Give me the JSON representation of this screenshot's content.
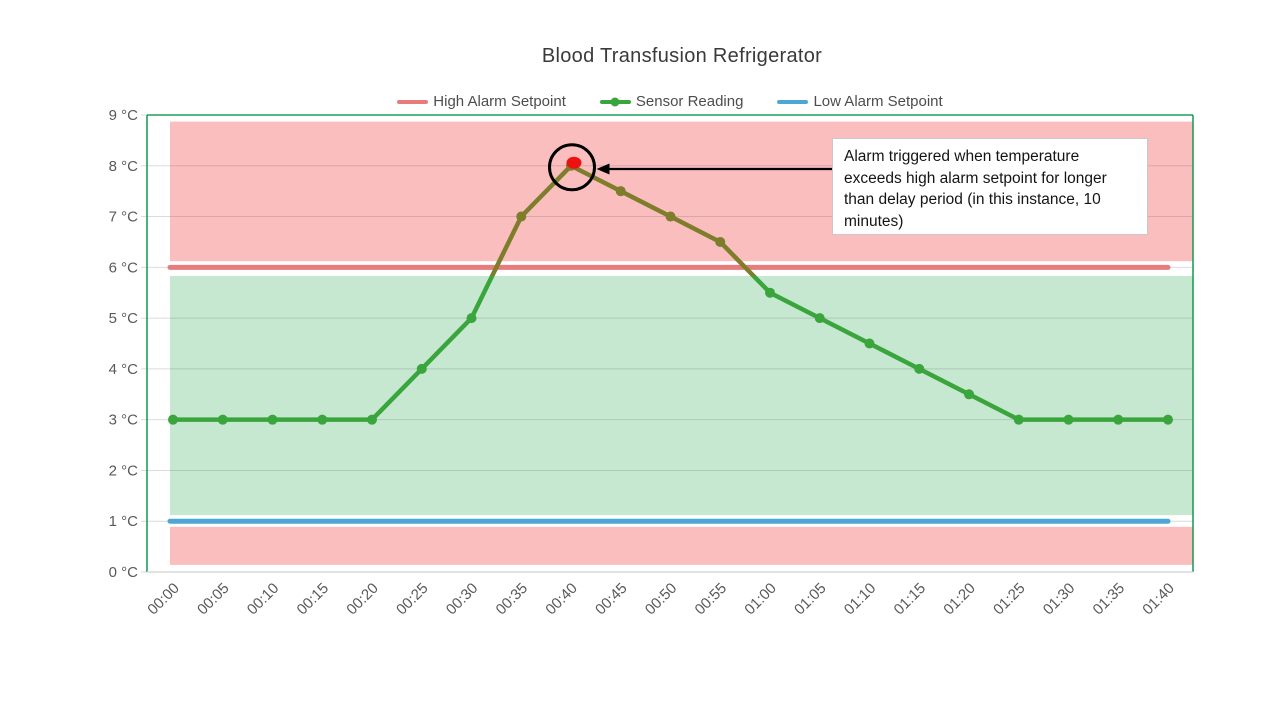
{
  "title": "Blood Transfusion Refrigerator",
  "legend": {
    "position": "top",
    "items": [
      {
        "label": "High Alarm Setpoint",
        "color": "#e87c7c",
        "marker": "line"
      },
      {
        "label": "Sensor Reading",
        "color": "#3aa53c",
        "marker": "line-dot"
      },
      {
        "label": "Low Alarm Setpoint",
        "color": "#4fa6d4",
        "marker": "line"
      }
    ]
  },
  "annotation": {
    "text": "Alarm triggered when temperature exceeds high alarm setpoint for longer than delay period (in this instance, 10 minutes)",
    "target_time": "00:40",
    "target_value": 8,
    "highlight_circle_color": "#000000",
    "highlight_dot_color": "#ee1111",
    "arrow_color": "#000000"
  },
  "chart_data": {
    "type": "line",
    "title": "Blood Transfusion Refrigerator",
    "x_labels": [
      "00:00",
      "00:05",
      "00:10",
      "00:15",
      "00:20",
      "00:25",
      "00:30",
      "00:35",
      "00:40",
      "00:45",
      "00:50",
      "00:55",
      "01:00",
      "01:05",
      "01:10",
      "01:15",
      "01:20",
      "01:25",
      "01:30",
      "01:35",
      "01:40"
    ],
    "y_axis": {
      "min": 0,
      "max": 9,
      "step": 1,
      "tick_labels": [
        "0 °C",
        "1 °C",
        "2 °C",
        "3 °C",
        "4 °C",
        "5 °C",
        "6 °C",
        "7 °C",
        "8 °C",
        "9 °C"
      ],
      "label_color": "#595959"
    },
    "series": [
      {
        "name": "High Alarm Setpoint",
        "type": "constant",
        "value": 6,
        "color": "#e87c7c"
      },
      {
        "name": "Sensor Reading",
        "type": "line-markers",
        "values": [
          3,
          3,
          3,
          3,
          3,
          4,
          5,
          7,
          8,
          7.5,
          7,
          6.5,
          5.5,
          5,
          4.5,
          4,
          3.5,
          3,
          3,
          3,
          3
        ],
        "color": "#3aa53c",
        "color_in_alarm_zone": "#7e7d2b"
      },
      {
        "name": "Low Alarm Setpoint",
        "type": "constant",
        "value": 1,
        "color": "#4fa6d4"
      }
    ],
    "bands": [
      {
        "name": "high-alarm-zone",
        "from": 6.12,
        "to": 8.87,
        "color": "#fbbebe"
      },
      {
        "name": "safe-zone",
        "from": 1.12,
        "to": 5.83,
        "color": "#c6e8d1"
      },
      {
        "name": "low-alarm-zone",
        "from": 0.14,
        "to": 0.89,
        "color": "#fbbebe"
      }
    ],
    "grid": {
      "horizontal": true,
      "vertical": false,
      "color": "rgba(90,90,90,0.22)"
    },
    "plot_border_color": "#1e9e5b",
    "bottom_axis_color": "#d9d9d9"
  }
}
